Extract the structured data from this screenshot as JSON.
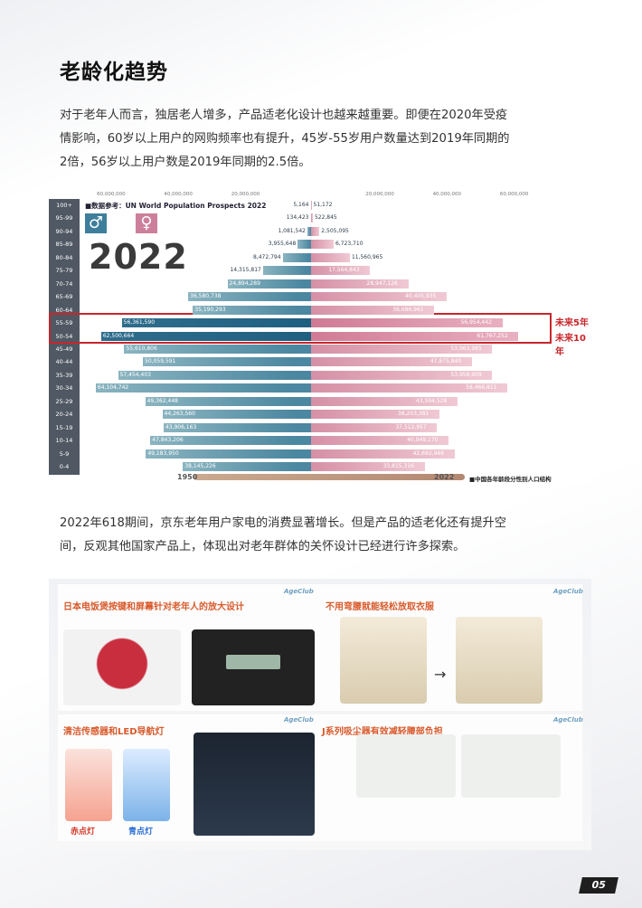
{
  "title": "老龄化趋势",
  "paragraph1": "对于老年人而言，独居老人增多，产品适老化设计也越来越重要。即便在2020年受疫情影响，60岁以上用户的网购频率也有提升，45岁-55岁用户数量达到2019年同期的2倍，56岁以上用户数是2019年同期的2.5倍。",
  "paragraph2": "2022年618期间，京东老年用户家电的消费显著增长。但是产品的适老化还有提升空间，反观其他国家产品上，体现出对老年群体的关怀设计已经进行许多探索。",
  "chart_data": {
    "type": "bar",
    "source_note": "■数据参考：UN World Population Prospects 2022",
    "year_label": "2022",
    "male_symbol": "♂",
    "female_symbol": "♀",
    "axis_ticks_left": [
      "60,000,000",
      "40,000,000",
      "20,000,000"
    ],
    "axis_ticks_right": [
      "20,000,000",
      "40,000,000",
      "60,000,000"
    ],
    "axis_max": 70000000,
    "categories": [
      "100+",
      "95-99",
      "90-94",
      "85-89",
      "80-84",
      "75-79",
      "70-74",
      "65-69",
      "60-64",
      "55-59",
      "50-54",
      "45-49",
      "40-44",
      "35-39",
      "30-34",
      "25-29",
      "20-24",
      "15-19",
      "10-14",
      "5-9",
      "0-4"
    ],
    "series": [
      {
        "side": "male",
        "values": [
          5164,
          134423,
          1081542,
          3955648,
          8472794,
          14315817,
          24894289,
          36580738,
          35190293,
          56361590,
          62500664,
          55610806,
          50059591,
          57454403,
          64104742,
          49362448,
          44263560,
          43906163,
          47843206,
          49183950,
          38145226
        ]
      },
      {
        "side": "female",
        "values": [
          51172,
          522845,
          2505095,
          6723710,
          11560965,
          17564843,
          28947126,
          40405935,
          36686961,
          56954442,
          61767252,
          53963985,
          47875840,
          53958909,
          58466811,
          43594528,
          38203381,
          37512957,
          40949170,
          42692948,
          33815316
        ]
      }
    ],
    "labels_male": [
      "5,164",
      "134,423",
      "1,081,542",
      "3,955,648",
      "8,472,794",
      "14,315,817",
      "24,894,289",
      "36,580,738",
      "35,190,293",
      "56,361,590",
      "62,500,664",
      "55,610,806",
      "50,059,591",
      "57,454,403",
      "64,104,742",
      "49,362,448",
      "44,263,560",
      "43,906,163",
      "47,843,206",
      "49,183,950",
      "38,145,226"
    ],
    "labels_female": [
      "51,172",
      "522,845",
      "2,505,095",
      "6,723,710",
      "11,560,965",
      "17,564,843",
      "28,947,126",
      "40,405,935",
      "36,686,961",
      "56,954,442",
      "61,767,252",
      "53,963,985",
      "47,875,840",
      "53,958,909",
      "58,466,811",
      "43,594,528",
      "38,203,381",
      "37,512,957",
      "40,949,170",
      "42,692,948",
      "33,815,316"
    ],
    "highlight": [
      "55-59",
      "50-54"
    ],
    "future_labels": [
      "未来5年",
      "未来10年"
    ],
    "timeline_start": "1950",
    "timeline_end": "2022",
    "legend_note": "■中国各年龄段分性别人口结构"
  },
  "collage": {
    "brand": "AgeClub",
    "panel1_title": "日本电饭煲按键和屏幕针对老年人的放大设计",
    "panel2_title": "不用弯腰就能轻松放取衣服",
    "panel3_title": "清洁传感器和LED导航灯",
    "panel4_title": "J系列吸尘器有效减轻腰部负担",
    "label_red": "赤点灯",
    "label_blue": "青点灯",
    "colors": {
      "accent": "#d85a2b",
      "highlight": "#c8262b",
      "male": "#4b87a0",
      "female": "#d590a6"
    }
  },
  "page_number": "05"
}
